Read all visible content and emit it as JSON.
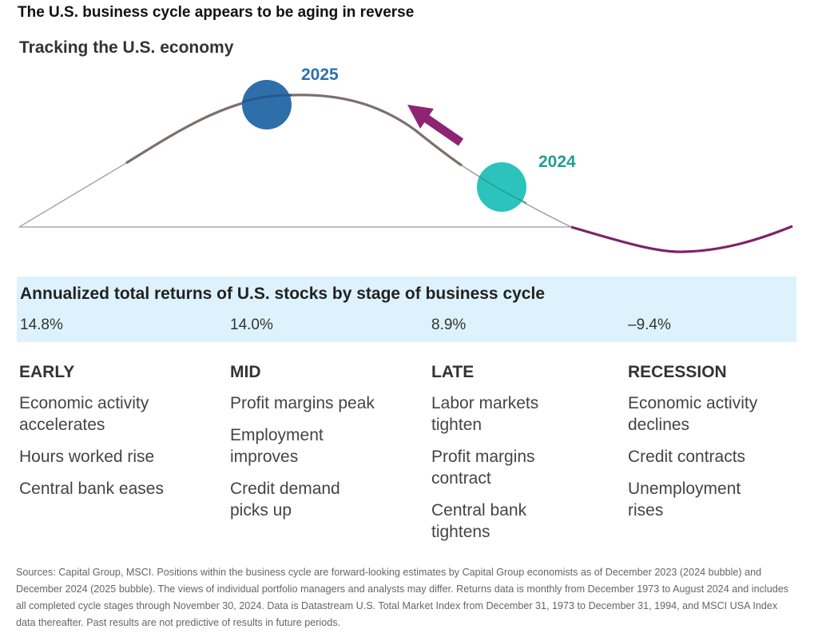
{
  "headline": "The U.S. business cycle appears to be aging in reverse",
  "diagram": {
    "title": "Tracking the U.S. economy",
    "markers": [
      {
        "year": "2025",
        "color": "#2e6faa",
        "label_color": "#2e6faa"
      },
      {
        "year": "2024",
        "color": "#2cc3bd",
        "label_color": "#1f9e97"
      }
    ],
    "colors": {
      "curve": "#7b6f6d",
      "recession": "#7c2367",
      "arrow": "#8e2472",
      "baseline": "#9a9a9a"
    }
  },
  "returns": {
    "title": "Annualized total returns of U.S. stocks by stage of business cycle",
    "values": [
      "14.8%",
      "14.0%",
      "8.9%",
      "–9.4%"
    ]
  },
  "stages": [
    {
      "name": "EARLY",
      "items": [
        "Economic activity accelerates",
        "Hours worked rise",
        "Central bank eases"
      ]
    },
    {
      "name": "MID",
      "items": [
        "Profit margins peak",
        "Employment improves",
        "Credit demand picks up"
      ]
    },
    {
      "name": "LATE",
      "items": [
        "Labor markets tighten",
        "Profit margins contract",
        "Central bank tightens"
      ]
    },
    {
      "name": "RECESSION",
      "items": [
        "Economic activity declines",
        "Credit contracts",
        "Unemployment rises"
      ]
    }
  ],
  "sources": "Sources: Capital Group, MSCI. Positions within the business cycle are forward-looking estimates by Capital Group economists as of December 2023 (2024 bubble) and December 2024 (2025 bubble). The views of individual portfolio managers and analysts may differ. Returns data is monthly from December 1973 to August 2024 and includes all completed cycle stages through November 30, 2024. Data is Datastream U.S. Total Market Index from December 31, 1973 to December 31, 1994, and MSCI USA Index data thereafter. Past results are not predictive of results in future periods."
}
